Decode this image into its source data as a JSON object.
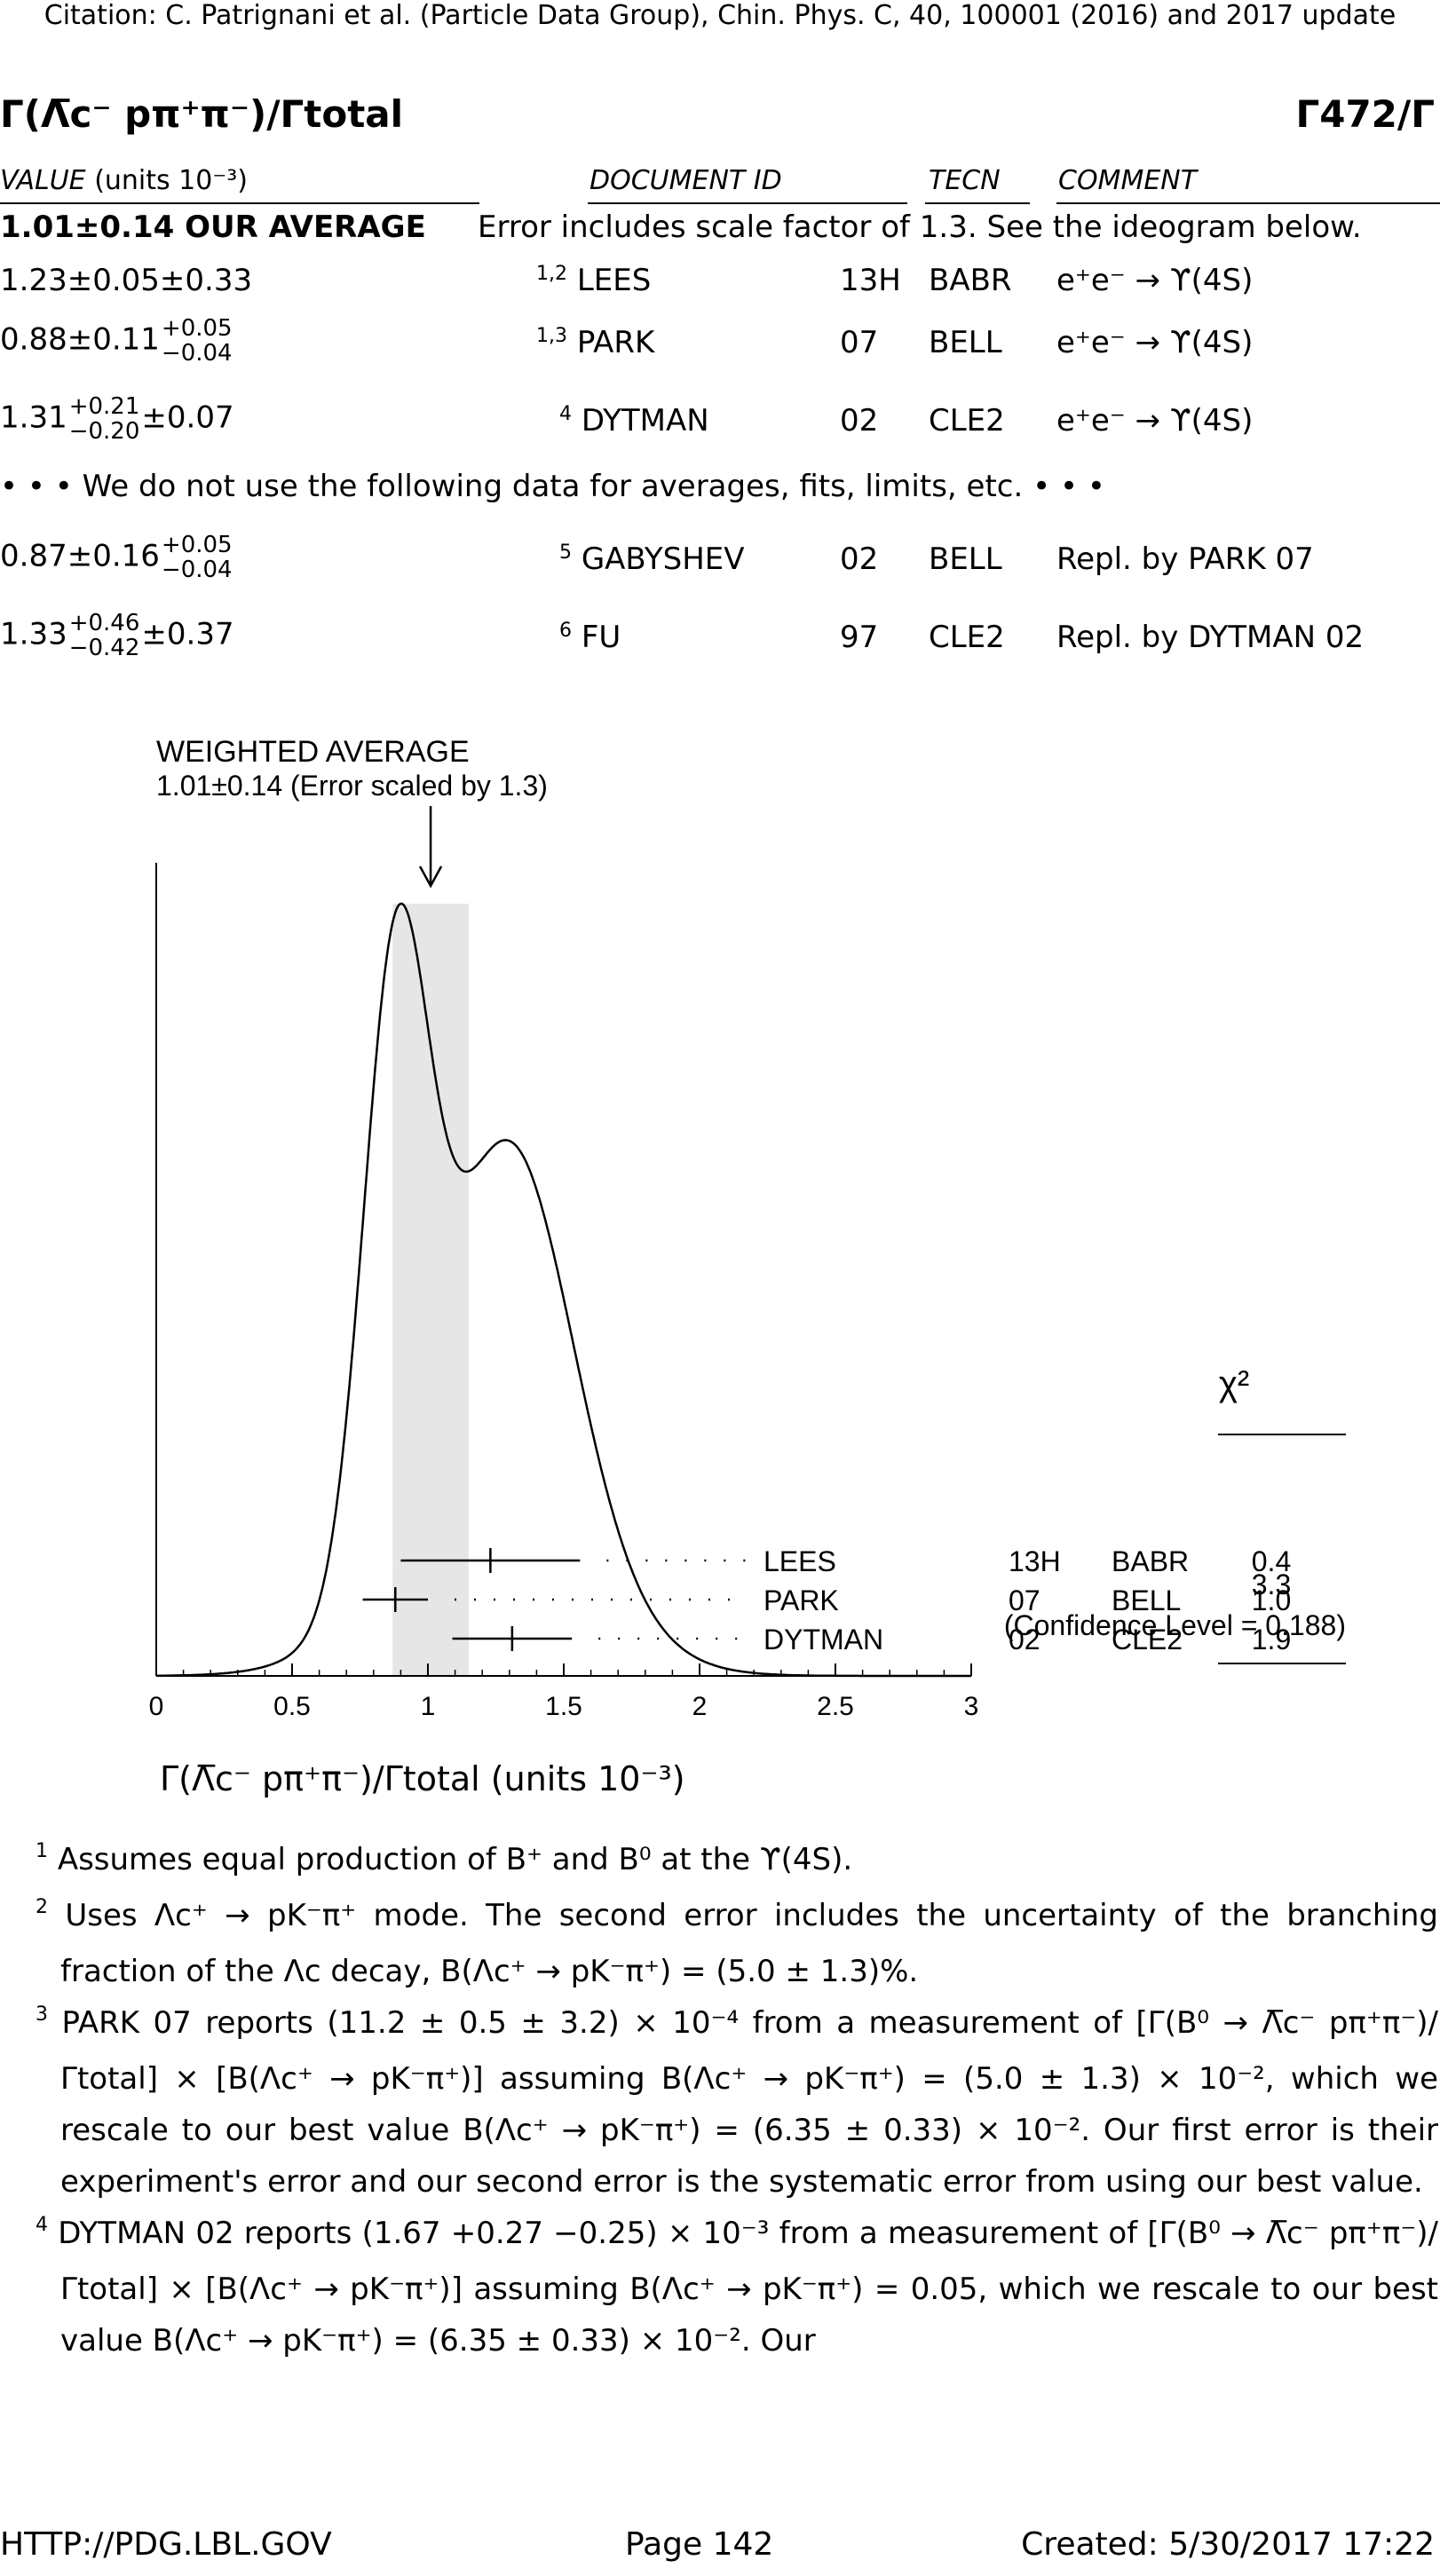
{
  "header": {
    "citation": "Citation: C. Patrignani et al. (Particle Data Group), Chin. Phys. C, 40, 100001 (2016) and 2017 update"
  },
  "title": {
    "ratio": "Γ(Λ̅c⁻ pπ⁺π⁻)/Γtotal",
    "index": "Γ472/Γ"
  },
  "table": {
    "columns": {
      "value": "VALUE",
      "units": "(units 10⁻³)",
      "document_id": "DOCUMENT ID",
      "tecn": "TECN",
      "comment": "COMMENT"
    },
    "average": {
      "value": "1.01±0.14 OUR AVERAGE",
      "comment": "Error includes scale factor of 1.3. See the ideogram below."
    },
    "rows": [
      {
        "value": "1.23±0.05±0.33",
        "refs": "1,2",
        "doc": "LEES",
        "year": "13H",
        "tecn": "BABR",
        "comment": "e⁺e⁻ → ϒ(4S)"
      },
      {
        "value": "0.88±0.11",
        "up": "+0.05",
        "down": "−0.04",
        "refs": "1,3",
        "doc": "PARK",
        "year": "07",
        "tecn": "BELL",
        "comment": "e⁺e⁻ → ϒ(4S)"
      },
      {
        "value": "1.31",
        "up": "+0.21",
        "down": "−0.20",
        "tail": "±0.07",
        "refs": "4",
        "doc": "DYTMAN",
        "year": "02",
        "tecn": "CLE2",
        "comment": "e⁺e⁻ → ϒ(4S)"
      }
    ],
    "not_used_note": "• • • We do not use the following data for averages, fits, limits, etc. • • •",
    "unused_rows": [
      {
        "value": "0.87±0.16",
        "up": "+0.05",
        "down": "−0.04",
        "refs": "5",
        "doc": "GABYSHEV",
        "year": "02",
        "tecn": "BELL",
        "comment": "Repl. by PARK 07"
      },
      {
        "value": "1.33",
        "up": "+0.46",
        "down": "−0.42",
        "tail": "±0.37",
        "refs": "6",
        "doc": "FU",
        "year": "97",
        "tecn": "CLE2",
        "comment": "Repl. by DYTMAN 02"
      }
    ]
  },
  "ideogram": {
    "weighted_title": "WEIGHTED AVERAGE",
    "weighted_value": "1.01±0.14 (Error scaled by 1.3)",
    "chi2_header": "χ²",
    "chi2_total": "3.3",
    "confidence": "(Confidence Level = 0.188)",
    "xaxis_label": "Γ(Λ̅c⁻ pπ⁺π⁻)/Γtotal (units 10⁻³)"
  },
  "chart_data": {
    "type": "scatter",
    "title": "WEIGHTED AVERAGE 1.01±0.14 (Error scaled by 1.3)",
    "xlabel": "Γ(Λ̅c⁻ pπ⁺π⁻)/Γtotal (units 10⁻³)",
    "xlim": [
      0,
      3
    ],
    "xticks": [
      "0",
      "0.5",
      "1",
      "1.5",
      "2",
      "2.5",
      "3"
    ],
    "average": 1.01,
    "average_error": 0.14,
    "series": [
      {
        "name": "LEES",
        "year": "13H",
        "tecn": "BABR",
        "value": 1.23,
        "err_low": 0.33,
        "err_high": 0.33,
        "chi2": "0.4"
      },
      {
        "name": "PARK",
        "year": "07",
        "tecn": "BELL",
        "value": 0.88,
        "err_low": 0.12,
        "err_high": 0.12,
        "chi2": "1.0"
      },
      {
        "name": "DYTMAN",
        "year": "02",
        "tecn": "CLE2",
        "value": 1.31,
        "err_low": 0.22,
        "err_high": 0.22,
        "chi2": "1.9"
      }
    ]
  },
  "footnotes": [
    {
      "num": "1",
      "text": "Assumes equal production of B⁺ and B⁰ at the ϒ(4S)."
    },
    {
      "num": "2",
      "text": "Uses Λc⁺ → pK⁻π⁺ mode. The second error includes the uncertainty of the branching fraction of the Λc decay, B(Λc⁺ → pK⁻π⁺) = (5.0 ± 1.3)%."
    },
    {
      "num": "3",
      "text": "PARK 07 reports (11.2 ± 0.5 ± 3.2) × 10⁻⁴ from a measurement of [Γ(B⁰ → Λ̅c⁻ pπ⁺π⁻)/Γtotal] × [B(Λc⁺ → pK⁻π⁺)] assuming B(Λc⁺ → pK⁻π⁺) = (5.0 ± 1.3) × 10⁻², which we rescale to our best value B(Λc⁺ → pK⁻π⁺) = (6.35 ± 0.33) × 10⁻². Our first error is their experiment's error and our second error is the systematic error from using our best value."
    },
    {
      "num": "4",
      "text": "DYTMAN 02 reports (1.67 +0.27 −0.25) × 10⁻³ from a measurement of [Γ(B⁰ → Λ̅c⁻ pπ⁺π⁻)/Γtotal] × [B(Λc⁺ → pK⁻π⁺)] assuming B(Λc⁺ → pK⁻π⁺) = 0.05, which we rescale to our best value B(Λc⁺ → pK⁻π⁺) = (6.35 ± 0.33) × 10⁻². Our"
    }
  ],
  "footer": {
    "url": "HTTP://PDG.LBL.GOV",
    "page": "Page 142",
    "created": "Created: 5/30/2017 17:22"
  }
}
